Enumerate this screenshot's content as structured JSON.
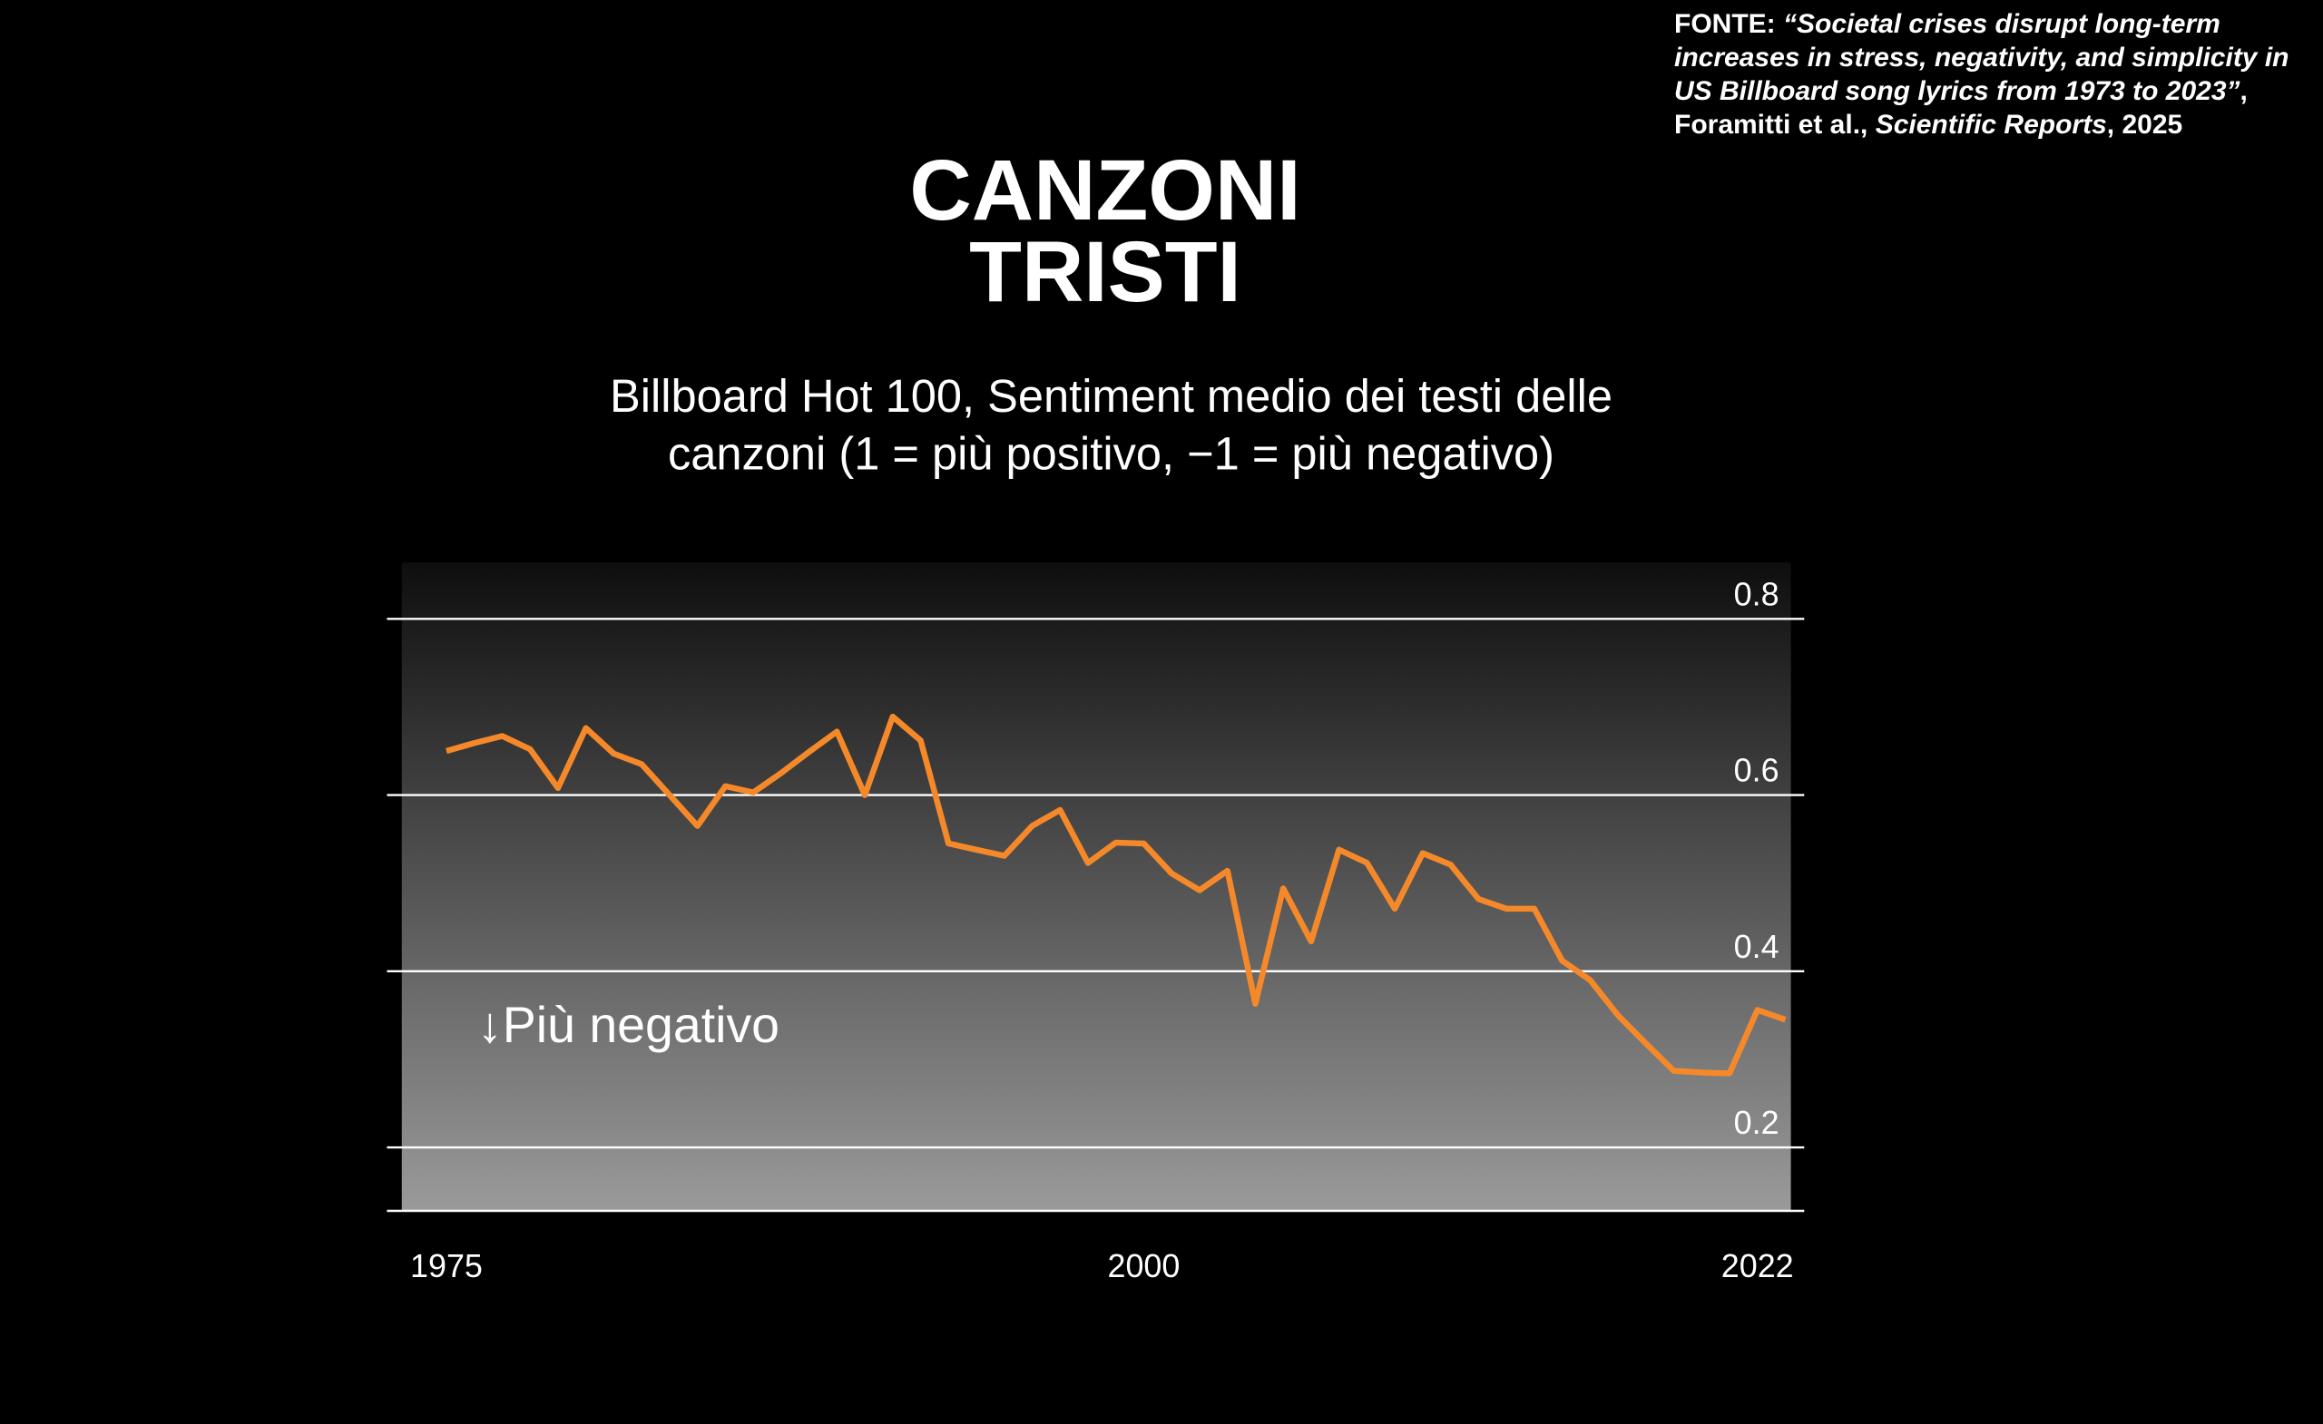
{
  "chart_data": {
    "type": "line",
    "title": [
      "CANZONI",
      "TRISTI"
    ],
    "subtitle": [
      "Billboard Hot 100, Sentiment medio dei testi delle",
      "canzoni (1 = più positivo, −1 = più negativo)"
    ],
    "source": [
      "FONTE: ",
      "“Societal crises disrupt long-term increases in stress, negativity, and simplicity in US Billboard song lyrics from 1973 to 2023”",
      ", Foramitti et al., ",
      "Scientific Reports",
      ", 2025"
    ],
    "annotation": "↓Più negativo",
    "x": [
      1975,
      1976,
      1977,
      1978,
      1979,
      1980,
      1981,
      1982,
      1983,
      1984,
      1985,
      1986,
      1987,
      1988,
      1989,
      1990,
      1991,
      1992,
      1993,
      1994,
      1995,
      1996,
      1997,
      1998,
      1999,
      2000,
      2001,
      2002,
      2003,
      2004,
      2005,
      2006,
      2007,
      2008,
      2009,
      2010,
      2011,
      2012,
      2013,
      2014,
      2015,
      2016,
      2017,
      2018,
      2019,
      2020,
      2021,
      2022,
      2023
    ],
    "series": [
      {
        "name": "Sentiment medio",
        "color": "#f5892a",
        "values": [
          0.65,
          0.659,
          0.667,
          0.652,
          0.608,
          0.676,
          0.647,
          0.635,
          0.6,
          0.565,
          0.61,
          0.603,
          0.625,
          0.649,
          0.672,
          0.6,
          0.689,
          0.662,
          0.545,
          0.538,
          0.531,
          0.565,
          0.583,
          0.523,
          0.546,
          0.545,
          0.511,
          0.492,
          0.514,
          0.363,
          0.494,
          0.434,
          0.538,
          0.523,
          0.471,
          0.534,
          0.521,
          0.482,
          0.471,
          0.471,
          0.412,
          0.39,
          0.35,
          0.318,
          0.287,
          0.285,
          0.284,
          0.356,
          0.345
        ]
      }
    ],
    "xlim": [
      1973.4,
      2023.2
    ],
    "xticks": [
      1975,
      2000,
      2022
    ],
    "ylim": [
      0.128,
      0.864
    ],
    "yticks": [
      0.2,
      0.4,
      0.6,
      0.8
    ],
    "grid": true
  }
}
